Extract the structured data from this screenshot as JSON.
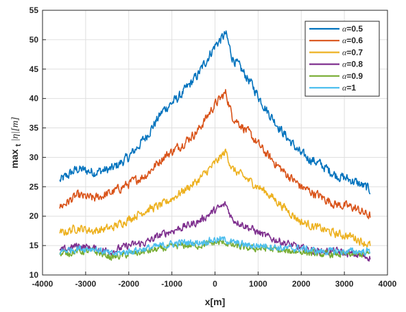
{
  "chart_data": {
    "type": "line",
    "xlabel": "x[m]",
    "ylabel": "max",
    "ylabel_sub": "t",
    "ylabel_rest": "|η|[m]",
    "xlim": [
      -4000,
      4000
    ],
    "ylim": [
      10,
      55
    ],
    "xticks": [
      -4000,
      -3000,
      -2000,
      -1000,
      0,
      1000,
      2000,
      3000,
      4000
    ],
    "yticks": [
      10,
      15,
      20,
      25,
      30,
      35,
      40,
      45,
      50,
      55
    ],
    "grid": true,
    "legend_position": "top-right",
    "x": [
      -3600,
      -3200,
      -2800,
      -2400,
      -2000,
      -1600,
      -1200,
      -800,
      -400,
      0,
      250,
      400,
      800,
      1200,
      1600,
      2000,
      2400,
      2800,
      3200,
      3600
    ],
    "series": [
      {
        "name": "α=0.5",
        "color": "#0072BD",
        "values": [
          26,
          28,
          27.5,
          28,
          30,
          33.5,
          38,
          40.5,
          44,
          49,
          51,
          47,
          43,
          38,
          34,
          30.5,
          29,
          27,
          26,
          24.5
        ]
      },
      {
        "name": "α=0.6",
        "color": "#D95319",
        "values": [
          21.5,
          23.5,
          23,
          24,
          25.5,
          27,
          30,
          32,
          34.5,
          39,
          41,
          37,
          34,
          30.5,
          27.5,
          25,
          23.5,
          22,
          21.5,
          20
        ]
      },
      {
        "name": "α=0.7",
        "color": "#EDB120",
        "values": [
          17,
          18,
          17.5,
          18,
          19.5,
          21,
          22,
          24,
          26,
          29,
          31,
          28,
          26,
          24,
          21.5,
          19,
          18,
          17,
          16.5,
          15
        ]
      },
      {
        "name": "α=0.8",
        "color": "#7E2F8E",
        "values": [
          14,
          15,
          14.5,
          14,
          15,
          15.5,
          17,
          18,
          19,
          21,
          22,
          19.5,
          18,
          16.5,
          15.5,
          14.5,
          14,
          14,
          13.5,
          13
        ]
      },
      {
        "name": "α=0.9",
        "color": "#77AC30",
        "values": [
          13.5,
          14,
          14,
          13,
          13.5,
          14,
          14.5,
          15,
          15,
          15.5,
          15.5,
          15,
          14.5,
          14.5,
          14,
          14,
          13.5,
          13.5,
          13.5,
          13.5
        ]
      },
      {
        "name": "α=1",
        "color": "#4DBEEE",
        "values": [
          14,
          14.5,
          14.5,
          13.5,
          14,
          14.5,
          15,
          15.5,
          15.5,
          16,
          16,
          15.5,
          15,
          15,
          14.5,
          14.5,
          14,
          14,
          14,
          14
        ]
      }
    ]
  }
}
